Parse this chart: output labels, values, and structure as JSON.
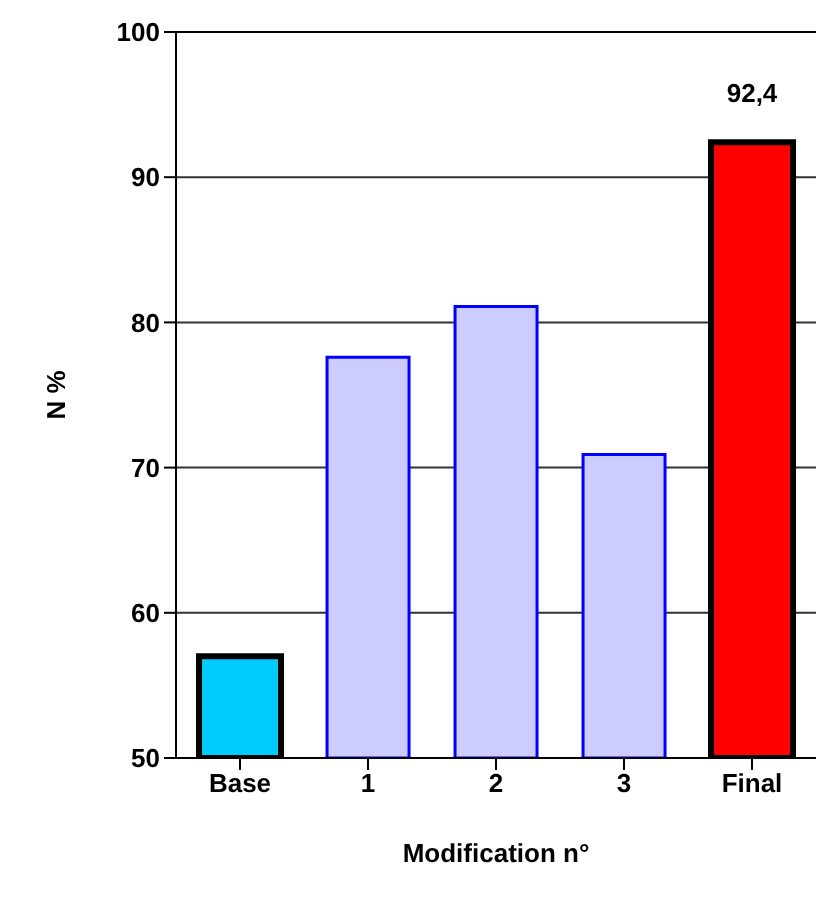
{
  "chart_data": {
    "type": "bar",
    "xlabel": "Modification n°",
    "ylabel": "N %",
    "categories": [
      "Base",
      "1",
      "2",
      "3",
      "Final"
    ],
    "values": [
      57.0,
      77.6,
      81.1,
      70.9,
      92.4
    ],
    "colors": [
      "#00ccff",
      "#ccccff",
      "#ccccff",
      "#ccccff",
      "#ff0000"
    ],
    "value_labels": [
      null,
      null,
      null,
      null,
      "92,4"
    ],
    "ylim": [
      50,
      100
    ],
    "yticks": [
      50,
      60,
      70,
      80,
      90,
      100
    ],
    "grid": "y"
  }
}
